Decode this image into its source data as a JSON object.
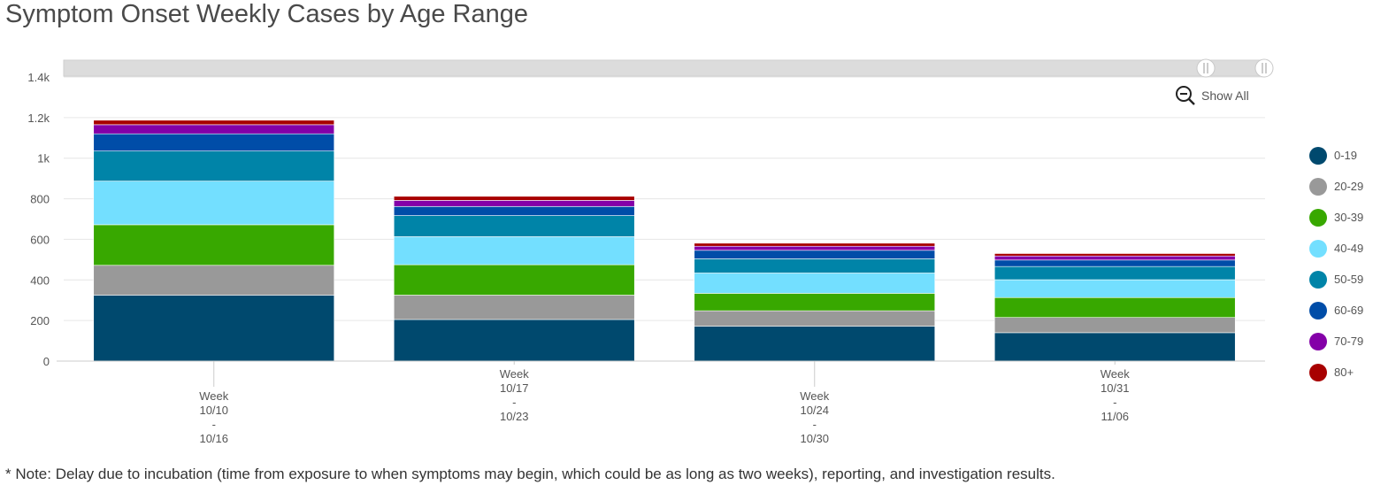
{
  "title": "Symptom Onset Weekly Cases by Age Range",
  "note": "* Note: Delay due to incubation (time from exposure to when symptoms may begin, which could be as long as two weeks), reporting, and investigation results.",
  "zoom": {
    "show_all_label": "Show All",
    "icon": "zoom-out-icon"
  },
  "colors": {
    "grid": "#e6e6e6",
    "scrollbar_track": "#dcdcdc",
    "axis_text": "#555555"
  },
  "chart_data": {
    "type": "bar",
    "stacked": true,
    "grid": true,
    "legend_position": "right",
    "ylim": [
      0,
      1400
    ],
    "y_ticks": [
      0,
      200,
      400,
      600,
      800,
      1000,
      1200,
      1400
    ],
    "y_tick_labels": [
      "0",
      "200",
      "400",
      "600",
      "800",
      "1k",
      "1.2k",
      "1.4k"
    ],
    "categories": [
      [
        "Week",
        "10/10",
        "-",
        "10/16"
      ],
      [
        "Week",
        "10/17",
        "-",
        "10/23"
      ],
      [
        "Week",
        "10/24",
        "-",
        "10/30"
      ],
      [
        "Week",
        "10/31",
        "-",
        "11/06"
      ]
    ],
    "series": [
      {
        "name": "0-19",
        "color": "#00496e",
        "values": [
          325,
          205,
          172,
          140
        ]
      },
      {
        "name": "20-29",
        "color": "#999999",
        "values": [
          147,
          120,
          76,
          75
        ]
      },
      {
        "name": "30-39",
        "color": "#38a800",
        "values": [
          200,
          150,
          86,
          98
        ]
      },
      {
        "name": "40-49",
        "color": "#73dfff",
        "values": [
          215,
          138,
          100,
          88
        ]
      },
      {
        "name": "50-59",
        "color": "#0084a8",
        "values": [
          148,
          104,
          70,
          65
        ]
      },
      {
        "name": "60-69",
        "color": "#004da8",
        "values": [
          85,
          45,
          42,
          32
        ]
      },
      {
        "name": "70-79",
        "color": "#8400a8",
        "values": [
          45,
          30,
          20,
          20
        ]
      },
      {
        "name": "80+",
        "color": "#a80000",
        "values": [
          22,
          20,
          15,
          12
        ]
      }
    ]
  }
}
